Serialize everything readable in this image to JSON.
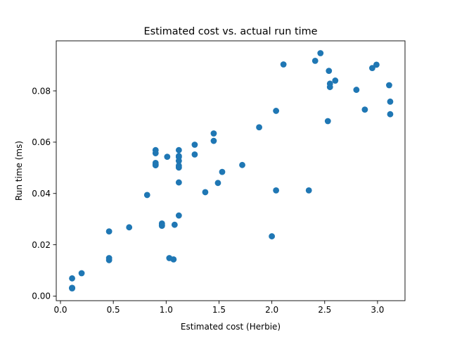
{
  "chart_data": {
    "type": "scatter",
    "title": "Estimated cost vs. actual run time",
    "xlabel": "Estimated cost (Herbie)",
    "ylabel": "Run time (ms)",
    "xlim": [
      -0.04,
      3.26
    ],
    "ylim": [
      -0.0018,
      0.0995
    ],
    "x_ticks": [
      0.0,
      0.5,
      1.0,
      1.5,
      2.0,
      2.5,
      3.0
    ],
    "x_tick_labels": [
      "0.0",
      "0.5",
      "1.0",
      "1.5",
      "2.0",
      "2.5",
      "3.0"
    ],
    "y_ticks": [
      0.0,
      0.02,
      0.04,
      0.06,
      0.08
    ],
    "y_tick_labels": [
      "0.00",
      "0.02",
      "0.04",
      "0.06",
      "0.08"
    ],
    "grid": false,
    "legend": "none",
    "marker_color": "#1f77b4",
    "series": [
      {
        "x": [
          0.11,
          0.11,
          0.11,
          0.11,
          0.11,
          0.2,
          0.46,
          0.46,
          0.46,
          0.65,
          0.82,
          0.9,
          0.9,
          0.9,
          0.9,
          0.9,
          0.96,
          0.96,
          0.96,
          1.01,
          1.03,
          1.07,
          1.08,
          1.12,
          1.12,
          1.12,
          1.12,
          1.12,
          1.12,
          1.12,
          1.12,
          1.27,
          1.27,
          1.37,
          1.45,
          1.45,
          1.49,
          1.53,
          1.72,
          1.88,
          2.0,
          2.04,
          2.04,
          2.11,
          2.35,
          2.41,
          2.46,
          2.53,
          2.54,
          2.55,
          2.55,
          2.6,
          2.8,
          2.88,
          2.95,
          2.99,
          3.11,
          3.12,
          3.12
        ],
        "y": [
          0.0031,
          0.003,
          0.0032,
          0.0031,
          0.0069,
          0.0089,
          0.0252,
          0.0148,
          0.014,
          0.0268,
          0.0394,
          0.0569,
          0.0557,
          0.0519,
          0.051,
          0.0513,
          0.0283,
          0.0277,
          0.0274,
          0.0543,
          0.0148,
          0.0143,
          0.0278,
          0.0569,
          0.0546,
          0.0542,
          0.0527,
          0.0508,
          0.0501,
          0.0443,
          0.0314,
          0.059,
          0.0552,
          0.0405,
          0.0634,
          0.0605,
          0.0441,
          0.0484,
          0.0511,
          0.0658,
          0.0233,
          0.0722,
          0.0412,
          0.0903,
          0.0412,
          0.0917,
          0.0947,
          0.0682,
          0.0878,
          0.0828,
          0.0815,
          0.084,
          0.0804,
          0.0727,
          0.0889,
          0.0902,
          0.0822,
          0.0758,
          0.0709
        ]
      }
    ]
  }
}
